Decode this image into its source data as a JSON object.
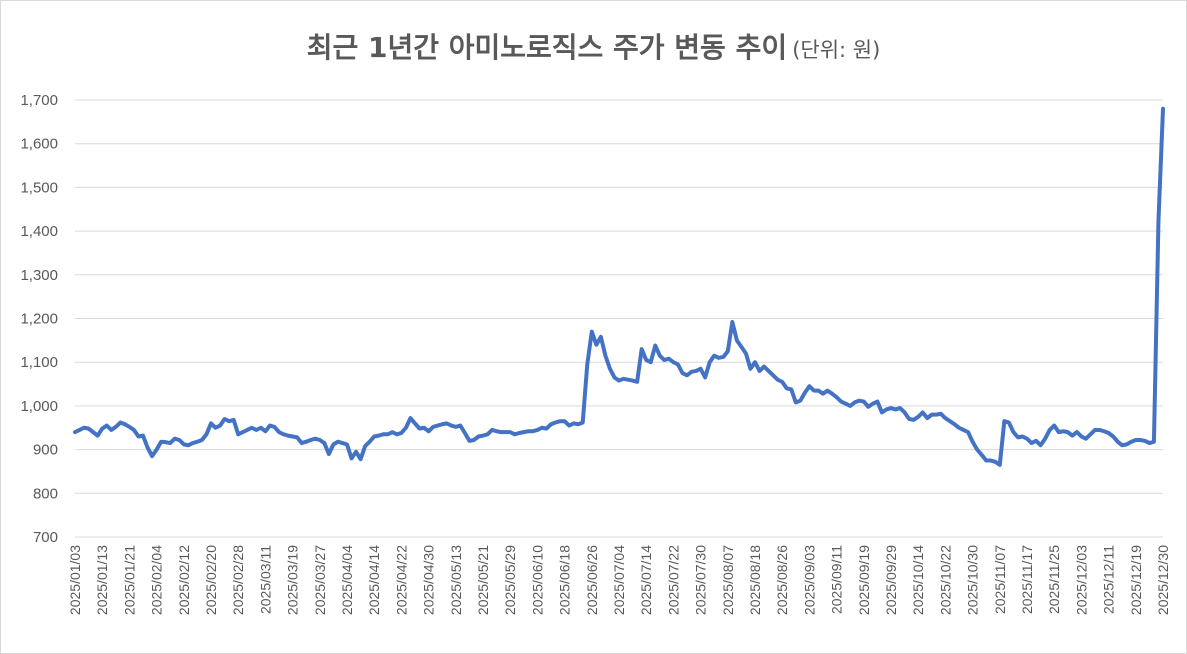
{
  "chart_data": {
    "type": "line",
    "title": "최근 1년간 아미노로직스 주가 변동 추이",
    "title_unit": "(단위: 원)",
    "ylim": [
      700,
      1700
    ],
    "yticks": [
      700,
      800,
      900,
      1000,
      1100,
      1200,
      1300,
      1400,
      1500,
      1600,
      1700
    ],
    "ytick_labels": [
      "700",
      "800",
      "900",
      "1,000",
      "1,100",
      "1,200",
      "1,300",
      "1,400",
      "1,500",
      "1,600",
      "1,700"
    ],
    "grid": true,
    "legend": "none",
    "line_color": "#4472c4",
    "x_tick_labels": [
      "2025/01/03",
      "2025/01/13",
      "2025/01/21",
      "2025/02/04",
      "2025/02/12",
      "2025/02/20",
      "2025/02/28",
      "2025/03/11",
      "2025/03/19",
      "2025/03/27",
      "2025/04/04",
      "2025/04/14",
      "2025/04/22",
      "2025/04/30",
      "2025/05/13",
      "2025/05/21",
      "2025/05/29",
      "2025/06/10",
      "2025/06/18",
      "2025/06/26",
      "2025/07/04",
      "2025/07/14",
      "2025/07/22",
      "2025/07/30",
      "2025/08/07",
      "2025/08/18",
      "2025/08/26",
      "2025/09/03",
      "2025/09/11",
      "2025/09/19",
      "2025/09/29",
      "2025/10/14",
      "2025/10/22",
      "2025/10/30",
      "2025/11/07",
      "2025/11/17",
      "2025/11/25",
      "2025/12/03",
      "2025/12/11",
      "2025/12/19",
      "2025/12/30"
    ],
    "x_tick_step": 6,
    "series": [
      {
        "values": [
          940,
          945,
          950,
          948,
          940,
          932,
          948,
          955,
          945,
          952,
          962,
          958,
          952,
          945,
          930,
          932,
          905,
          885,
          900,
          918,
          917,
          915,
          925,
          922,
          912,
          910,
          915,
          918,
          922,
          935,
          960,
          950,
          955,
          970,
          965,
          968,
          935,
          940,
          945,
          950,
          945,
          950,
          942,
          955,
          952,
          940,
          935,
          932,
          930,
          928,
          915,
          918,
          922,
          925,
          922,
          915,
          890,
          912,
          918,
          915,
          912,
          880,
          895,
          878,
          908,
          918,
          930,
          932,
          935,
          935,
          940,
          935,
          938,
          950,
          972,
          960,
          948,
          950,
          942,
          952,
          955,
          958,
          960,
          955,
          952,
          955,
          938,
          920,
          922,
          930,
          932,
          935,
          945,
          942,
          940,
          940,
          940,
          935,
          938,
          940,
          942,
          942,
          945,
          950,
          948,
          958,
          962,
          965,
          965,
          955,
          960,
          958,
          962,
          1095,
          1170,
          1140,
          1158,
          1115,
          1085,
          1065,
          1058,
          1062,
          1060,
          1058,
          1055,
          1130,
          1105,
          1100,
          1138,
          1115,
          1105,
          1108,
          1100,
          1095,
          1075,
          1070,
          1078,
          1080,
          1085,
          1065,
          1100,
          1115,
          1110,
          1112,
          1125,
          1192,
          1150,
          1135,
          1120,
          1085,
          1100,
          1080,
          1090,
          1080,
          1070,
          1060,
          1055,
          1040,
          1038,
          1008,
          1012,
          1030,
          1045,
          1035,
          1035,
          1028,
          1035,
          1028,
          1020,
          1010,
          1005,
          1000,
          1008,
          1012,
          1010,
          998,
          1005,
          1010,
          985,
          992,
          995,
          992,
          995,
          985,
          970,
          968,
          975,
          985,
          972,
          980,
          980,
          982,
          972,
          965,
          958,
          950,
          945,
          940,
          918,
          900,
          888,
          875,
          875,
          872,
          865,
          965,
          962,
          940,
          928,
          930,
          925,
          915,
          920,
          910,
          925,
          945,
          955,
          940,
          942,
          940,
          932,
          940,
          930,
          925,
          935,
          945,
          945,
          942,
          938,
          930,
          918,
          910,
          912,
          918,
          922,
          922,
          920,
          915,
          918,
          1425,
          1680
        ]
      }
    ]
  }
}
